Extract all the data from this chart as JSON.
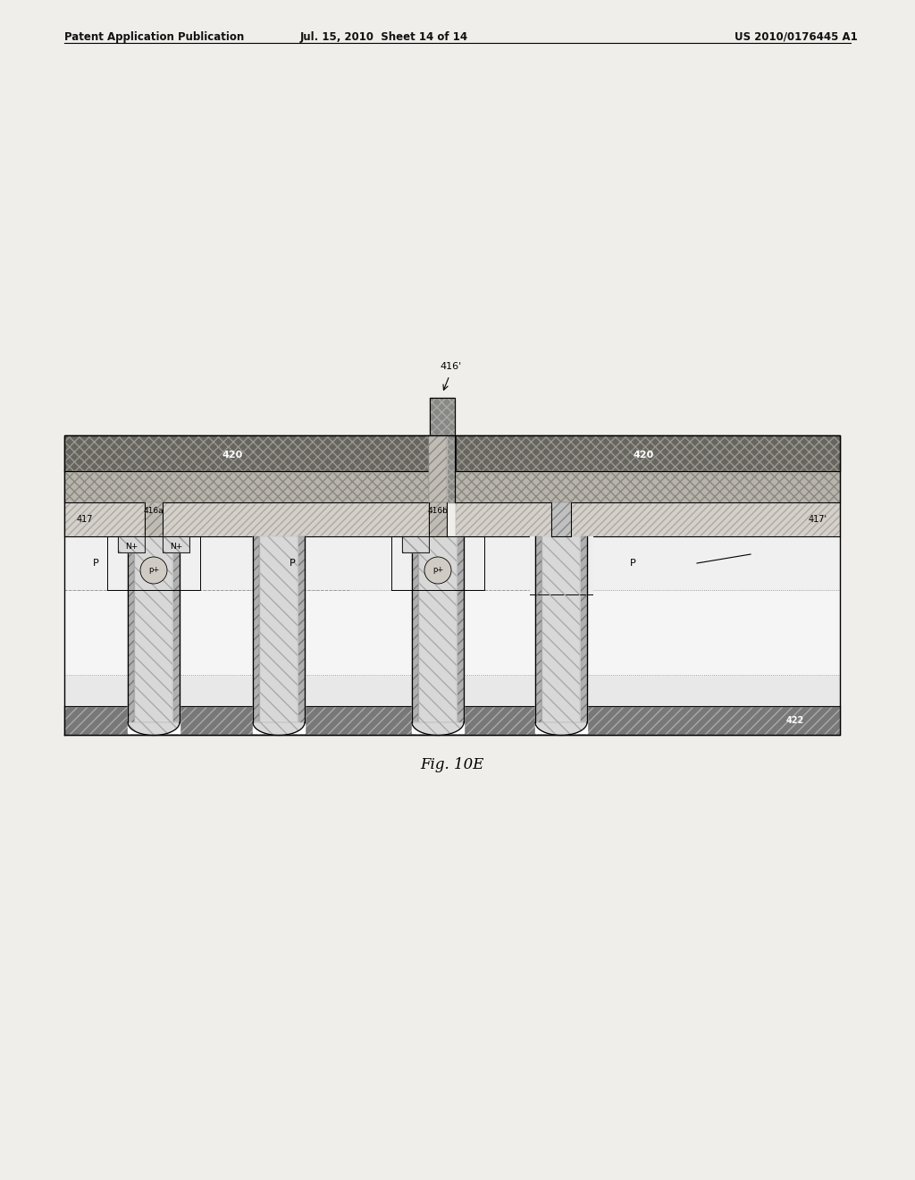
{
  "title": "Fig. 10E",
  "header_left": "Patent Application Publication",
  "header_center": "Jul. 15, 2010  Sheet 14 of 14",
  "header_right": "US 2010/0176445 A1",
  "bg_color": "#f0eeea",
  "labels": {
    "416prime": "416'",
    "420": "420",
    "417": "417",
    "417prime": "417'",
    "416a": "416a",
    "416b": "416b",
    "Nplus": "N+",
    "N": "N",
    "422": "422",
    "p_body": "P",
    "nplus_src": "N+",
    "pplus_body": "p+",
    "caption": "Fig. 10E"
  }
}
